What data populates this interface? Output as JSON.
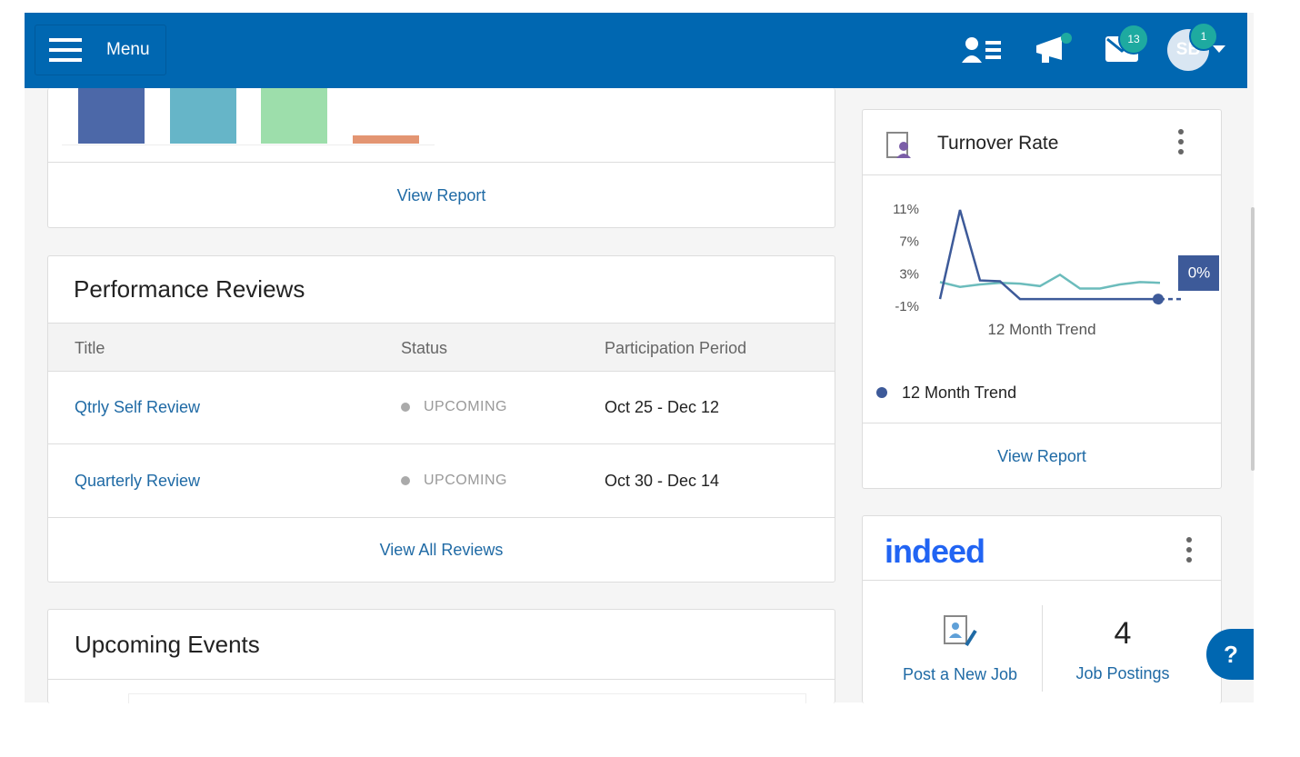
{
  "header": {
    "menu": "Menu",
    "messages_badge": "13",
    "avatar": "SB",
    "avatar_badge": "1"
  },
  "top_card": {
    "link": "View Report"
  },
  "performance": {
    "title": "Performance Reviews",
    "columns": [
      "Title",
      "Status",
      "Participation Period"
    ],
    "rows": [
      [
        "Qtrly Self Review",
        "UPCOMING",
        "Oct 25 - Dec 12"
      ],
      [
        "Quarterly Review",
        "UPCOMING",
        "Oct 30 - Dec 14"
      ]
    ],
    "link": "View All Reviews"
  },
  "events": {
    "title": "Upcoming Events"
  },
  "turnover": {
    "title": "Turnover Rate",
    "chart": {
      "type": "line",
      "xlabel": "12 Month Trend",
      "ylim": [
        -1,
        11
      ],
      "yticks": [
        {
          "value": 11,
          "label": "11%"
        },
        {
          "value": 7,
          "label": "7%"
        },
        {
          "value": 3,
          "label": "3%"
        },
        {
          "value": -1,
          "label": "-1%"
        }
      ],
      "series": [
        {
          "name": "12 Month Trend",
          "color": "#3d5a99",
          "values": [
            0,
            11,
            2.3,
            2.2,
            0,
            0,
            0,
            0,
            0,
            0,
            0,
            0
          ]
        },
        {
          "color": "#6cbcbc",
          "values": [
            2.1,
            1.5,
            1.8,
            2,
            1.9,
            1.6,
            3,
            1.3,
            1.3,
            1.8,
            2.1,
            2
          ]
        }
      ],
      "tooltip": {
        "value": 0,
        "label": "0%"
      }
    },
    "link": "View Report"
  },
  "indeed": {
    "logo": "indeed",
    "post": "Post a New Job",
    "count": "4",
    "count_label": "Job Postings"
  },
  "help": "?"
}
